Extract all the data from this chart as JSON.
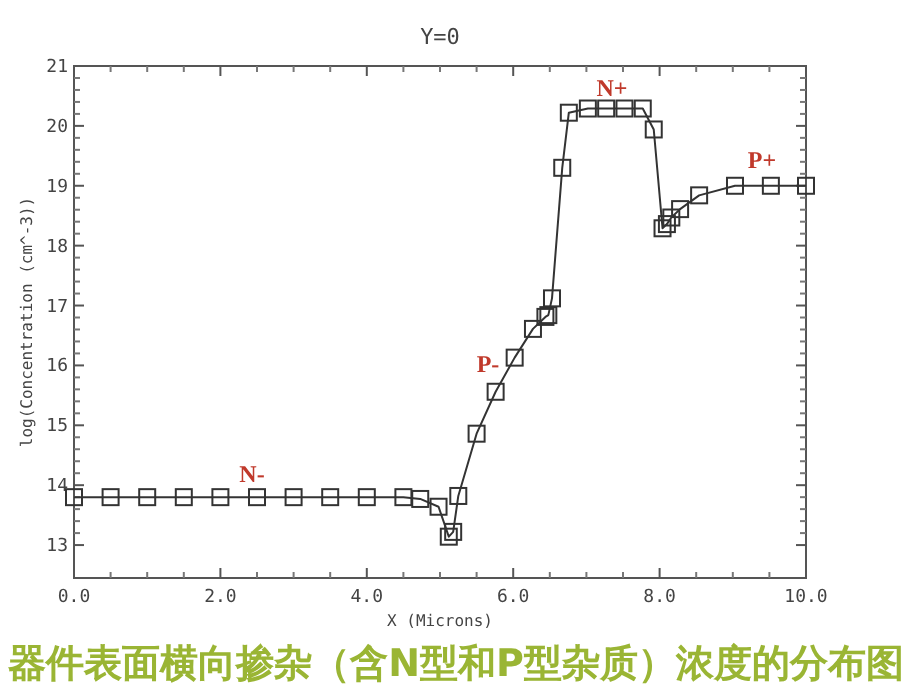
{
  "chart_data": {
    "type": "line",
    "title": "Y=0",
    "xlabel": "X (Microns)",
    "ylabel": "log(Concentration (cm^-3))",
    "x": [
      0,
      0.5,
      1.0,
      1.5,
      2.0,
      2.5,
      3.0,
      3.5,
      4.0,
      4.5,
      4.73,
      4.98,
      5.12,
      5.18,
      5.25,
      5.5,
      5.76,
      6.02,
      6.27,
      6.44,
      6.48,
      6.53,
      6.67,
      6.76,
      7.02,
      7.27,
      7.52,
      7.77,
      7.92,
      8.04,
      8.1,
      8.16,
      8.28,
      8.54,
      9.03,
      9.52,
      10.0
    ],
    "series": [
      {
        "color": "#333333",
        "values": [
          13.8,
          13.8,
          13.8,
          13.8,
          13.8,
          13.8,
          13.8,
          13.8,
          13.8,
          13.8,
          13.77,
          13.64,
          13.14,
          13.22,
          13.82,
          14.86,
          15.56,
          16.13,
          16.61,
          16.81,
          16.84,
          17.12,
          19.3,
          20.22,
          20.29,
          20.29,
          20.29,
          20.29,
          19.94,
          18.29,
          18.36,
          18.47,
          18.61,
          18.84,
          19.0,
          19.0,
          19.0
        ]
      }
    ],
    "xlim": [
      0,
      10
    ],
    "ylim": [
      12.45,
      21
    ],
    "xticks": [
      {
        "value": 0,
        "label": "0.0"
      },
      {
        "value": 2,
        "label": "2.0"
      },
      {
        "value": 4,
        "label": "4.0"
      },
      {
        "value": 6,
        "label": "6.0"
      },
      {
        "value": 8,
        "label": "8.0"
      },
      {
        "value": 10,
        "label": "10.0"
      }
    ],
    "yticks": [
      13,
      14,
      15,
      16,
      17,
      18,
      19,
      20,
      21
    ],
    "marker": "square",
    "line_style": "solid",
    "grid": false,
    "annotations": [
      "N-",
      "P-",
      "N+",
      "P+",
      "器件表面横向掺杂（含N型和P型杂质）浓度的分布图"
    ]
  }
}
